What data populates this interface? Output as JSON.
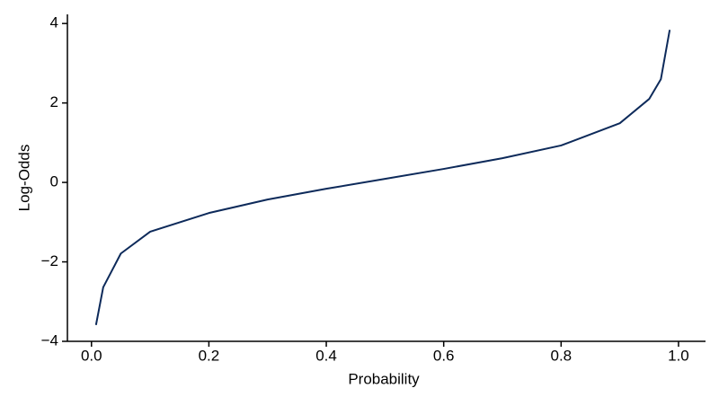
{
  "chart_data": {
    "type": "line",
    "x_label": "Probability",
    "y_label": "Log-Odds",
    "x": [
      0.0077,
      0.02,
      0.05,
      0.1,
      0.2,
      0.3,
      0.4,
      0.5,
      0.6,
      0.7,
      0.8,
      0.9,
      0.95,
      0.97,
      0.985
    ],
    "series": [
      {
        "color": "#0d2a5a",
        "values": [
          -3.59,
          -2.64,
          -1.79,
          -1.24,
          -0.77,
          -0.43,
          -0.16,
          0.09,
          0.34,
          0.61,
          0.93,
          1.49,
          2.1,
          2.6,
          3.84
        ]
      }
    ],
    "xlim": [
      -0.041,
      1.046
    ],
    "xticks": [
      {
        "value": 0,
        "label": "0.0"
      },
      0.2,
      0.4,
      0.6,
      0.8,
      {
        "value": 1,
        "label": "1.0"
      }
    ],
    "ylim": [
      -4,
      4.23
    ],
    "yticks": [
      {
        "value": -4,
        "label": "−4"
      },
      {
        "value": -2,
        "label": "−2"
      },
      0,
      2,
      4
    ],
    "grid": false
  }
}
